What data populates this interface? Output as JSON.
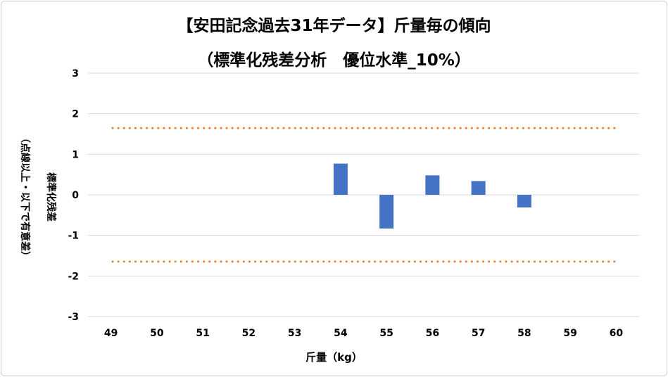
{
  "chart_data": {
    "type": "bar",
    "title": "【安田記念過去31年データ】斤量毎の傾向",
    "subtitle": "（標準化残差分析　優位水準_10%）",
    "xlabel": "斤量（kg）",
    "ylabel": "標準化残差",
    "ylabel_note": "（点線以上・以下で有意差）",
    "categories": [
      "49",
      "50",
      "51",
      "52",
      "53",
      "54",
      "55",
      "56",
      "57",
      "58",
      "59",
      "60"
    ],
    "values": [
      null,
      null,
      null,
      null,
      null,
      0.77,
      -0.83,
      0.48,
      0.34,
      -0.31,
      null,
      null
    ],
    "ylim": [
      -3,
      3
    ],
    "yticks": [
      3,
      2,
      1,
      0,
      -1,
      -2,
      -3
    ],
    "ytick_labels": [
      "3",
      "2",
      "1",
      "0",
      "-1",
      "-2",
      "-3"
    ],
    "threshold_lines": [
      1.645,
      -1.645
    ],
    "grid": true,
    "colors": {
      "bar": "#4472c4",
      "threshold": "#ed7d31",
      "grid": "#d9d9d9"
    }
  }
}
